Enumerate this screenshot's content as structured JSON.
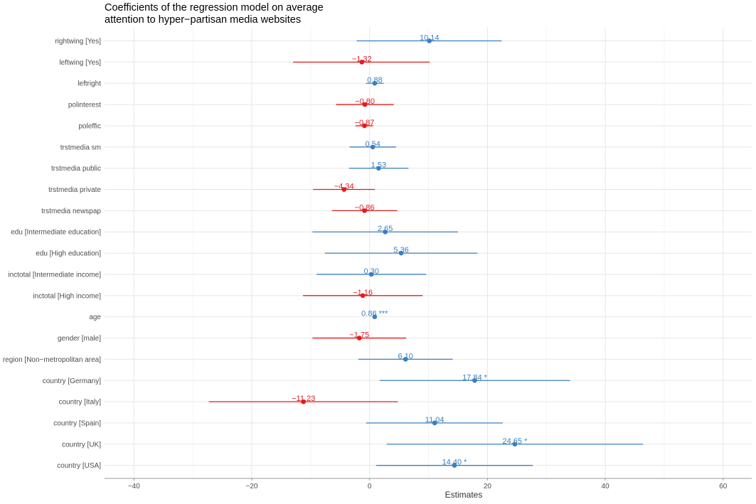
{
  "chart_data": {
    "type": "coefficient-plot",
    "title": [
      "Coefficients of the regression model on average",
      "attention to hyper−partisan media websites"
    ],
    "xlabel": "Estimates",
    "xlim": [
      -45,
      65
    ],
    "xticks": [
      -40,
      -20,
      0,
      20,
      40,
      60
    ],
    "xtick_labels": [
      "−40",
      "−20",
      "0",
      "20",
      "40",
      "60"
    ],
    "grid": true,
    "colors": {
      "positive": "#3a7fc1",
      "negative": "#e31a1c"
    },
    "terms": [
      {
        "label": "rightwing [Yes]",
        "estimate": 10.14,
        "ci": [
          -2.2,
          22.4
        ],
        "text": "10.14"
      },
      {
        "label": "leftwing [Yes]",
        "estimate": -1.32,
        "ci": [
          -13.0,
          10.2
        ],
        "text": "−1.32"
      },
      {
        "label": "leftright",
        "estimate": 0.88,
        "ci": [
          -0.6,
          2.4
        ],
        "text": "0.88"
      },
      {
        "label": "polinterest",
        "estimate": -0.8,
        "ci": [
          -5.7,
          4.1
        ],
        "text": "−0.80"
      },
      {
        "label": "poleffic",
        "estimate": -0.87,
        "ci": [
          -2.4,
          0.6
        ],
        "text": "−0.87"
      },
      {
        "label": "trstmedia sm",
        "estimate": 0.54,
        "ci": [
          -3.4,
          4.5
        ],
        "text": "0.54"
      },
      {
        "label": "trstmedia public",
        "estimate": 1.53,
        "ci": [
          -3.5,
          6.6
        ],
        "text": "1.53"
      },
      {
        "label": "trstmedia private",
        "estimate": -4.34,
        "ci": [
          -9.6,
          0.9
        ],
        "text": "−4.34"
      },
      {
        "label": "trstmedia newspap",
        "estimate": -0.86,
        "ci": [
          -6.4,
          4.7
        ],
        "text": "−0.86"
      },
      {
        "label": "edu [Intermediate education]",
        "estimate": 2.65,
        "ci": [
          -9.7,
          15.0
        ],
        "text": "2.65"
      },
      {
        "label": "edu [High education]",
        "estimate": 5.36,
        "ci": [
          -7.6,
          18.3
        ],
        "text": "5.36"
      },
      {
        "label": "inctotal [Intermediate income]",
        "estimate": 0.3,
        "ci": [
          -9.0,
          9.6
        ],
        "text": "0.30"
      },
      {
        "label": "inctotal [High income]",
        "estimate": -1.16,
        "ci": [
          -11.3,
          9.0
        ],
        "text": "−1.16"
      },
      {
        "label": "age",
        "estimate": 0.86,
        "ci": [
          0.5,
          1.2
        ],
        "text": "0.86 ***"
      },
      {
        "label": "gender [male]",
        "estimate": -1.75,
        "ci": [
          -9.7,
          6.2
        ],
        "text": "−1.75"
      },
      {
        "label": "region [Non−metropolitan area]",
        "estimate": 6.1,
        "ci": [
          -1.9,
          14.1
        ],
        "text": "6.10"
      },
      {
        "label": "country [Germany]",
        "estimate": 17.84,
        "ci": [
          1.7,
          34.0
        ],
        "text": "17.84 *"
      },
      {
        "label": "country [Italy]",
        "estimate": -11.23,
        "ci": [
          -27.3,
          4.8
        ],
        "text": "−11.23"
      },
      {
        "label": "country [Spain]",
        "estimate": 11.04,
        "ci": [
          -0.6,
          22.6
        ],
        "text": "11.04"
      },
      {
        "label": "country [UK]",
        "estimate": 24.65,
        "ci": [
          2.9,
          46.4
        ],
        "text": "24.65 *"
      },
      {
        "label": "country [USA]",
        "estimate": 14.4,
        "ci": [
          1.1,
          27.7
        ],
        "text": "14.40 *"
      }
    ]
  }
}
